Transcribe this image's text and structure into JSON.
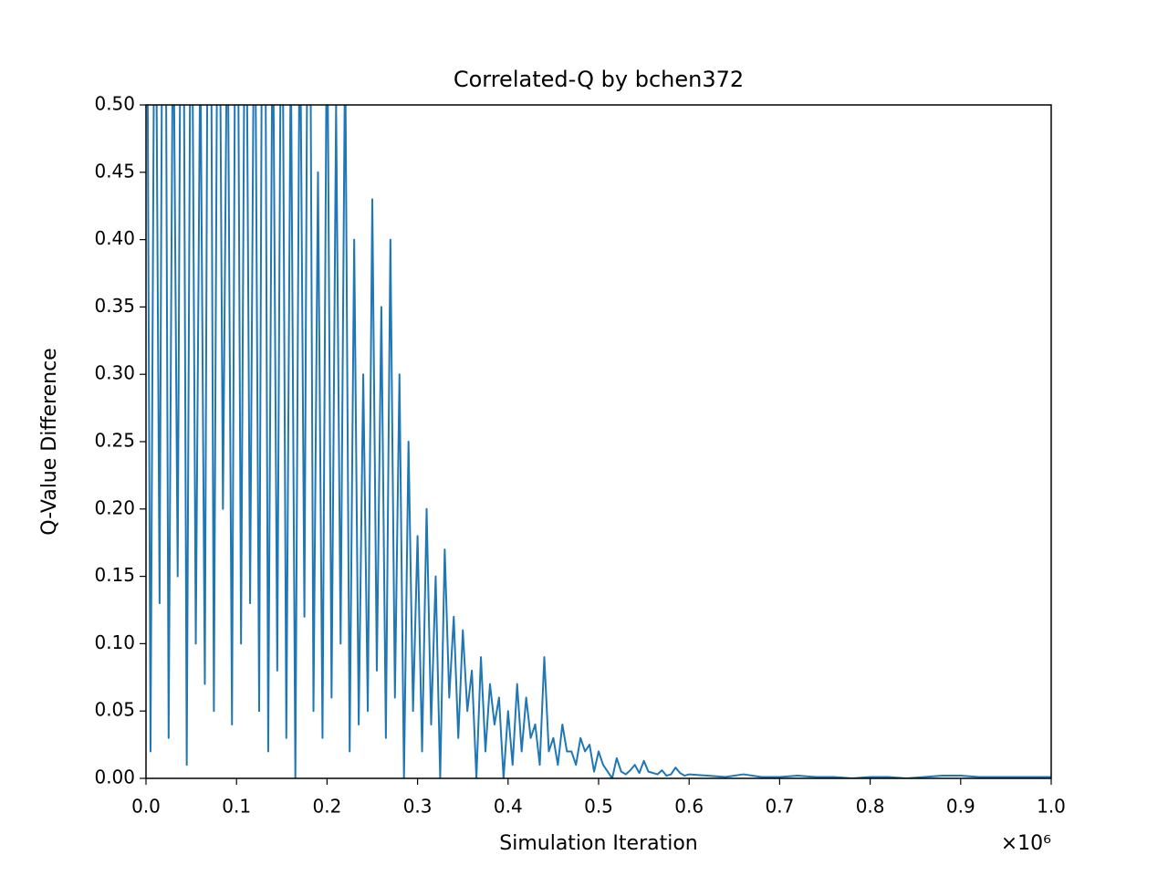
{
  "chart_data": {
    "type": "line",
    "title": "Correlated-Q by bchen372",
    "x_label": "Simulation Iteration",
    "y_label": "Q-Value Difference",
    "x_offset_label": "×10⁶",
    "color": "#1f77b4",
    "xlim": [
      0,
      1
    ],
    "ylim": [
      0,
      0.5
    ],
    "xticks": [
      {
        "value": 0,
        "label": "0.0"
      },
      0.1,
      0.2,
      0.3,
      0.4,
      0.5,
      0.6,
      0.7,
      0.8,
      0.9,
      {
        "value": 1,
        "label": "1.0"
      }
    ],
    "yticks": [
      {
        "value": 0,
        "label": "0.00"
      },
      0.05,
      {
        "value": 0.1,
        "label": "0.10"
      },
      0.15,
      {
        "value": 0.2,
        "label": "0.20"
      },
      0.25,
      {
        "value": 0.3,
        "label": "0.30"
      },
      0.35,
      {
        "value": 0.4,
        "label": "0.40"
      },
      0.45,
      {
        "value": 0.5,
        "label": "0.50"
      }
    ],
    "x": [
      0,
      0.005,
      0.01,
      0.015,
      0.02,
      0.025,
      0.03,
      0.035,
      0.04,
      0.045,
      0.05,
      0.055,
      0.06,
      0.065,
      0.07,
      0.075,
      0.08,
      0.085,
      0.09,
      0.095,
      0.1,
      0.105,
      0.11,
      0.115,
      0.12,
      0.125,
      0.13,
      0.135,
      0.14,
      0.145,
      0.15,
      0.155,
      0.16,
      0.165,
      0.17,
      0.175,
      0.18,
      0.185,
      0.19,
      0.195,
      0.2,
      0.205,
      0.21,
      0.215,
      0.22,
      0.225,
      0.23,
      0.235,
      0.24,
      0.245,
      0.25,
      0.255,
      0.26,
      0.265,
      0.27,
      0.275,
      0.28,
      0.285,
      0.29,
      0.295,
      0.3,
      0.305,
      0.31,
      0.315,
      0.32,
      0.325,
      0.33,
      0.335,
      0.34,
      0.345,
      0.35,
      0.355,
      0.36,
      0.365,
      0.37,
      0.375,
      0.38,
      0.385,
      0.39,
      0.395,
      0.4,
      0.405,
      0.41,
      0.415,
      0.42,
      0.425,
      0.43,
      0.435,
      0.44,
      0.445,
      0.45,
      0.455,
      0.46,
      0.465,
      0.47,
      0.475,
      0.48,
      0.485,
      0.49,
      0.495,
      0.5,
      0.505,
      0.51,
      0.515,
      0.52,
      0.525,
      0.53,
      0.535,
      0.54,
      0.545,
      0.55,
      0.555,
      0.56,
      0.565,
      0.57,
      0.575,
      0.58,
      0.585,
      0.59,
      0.595,
      0.6,
      0.62,
      0.64,
      0.66,
      0.68,
      0.7,
      0.72,
      0.74,
      0.76,
      0.78,
      0.8,
      0.82,
      0.84,
      0.86,
      0.88,
      0.9,
      0.92,
      0.94,
      0.96,
      0.98,
      1
    ],
    "values": [
      0.8,
      0.02,
      0.7,
      0.13,
      0.9,
      0.03,
      0.6,
      0.15,
      0.85,
      0.01,
      0.7,
      0.1,
      0.55,
      0.07,
      0.9,
      0.05,
      0.75,
      0.2,
      0.6,
      0.04,
      0.8,
      0.1,
      0.7,
      0.13,
      0.65,
      0.05,
      0.9,
      0.02,
      0.6,
      0.08,
      0.7,
      0.03,
      0.55,
      0.0,
      0.6,
      0.12,
      0.8,
      0.05,
      0.45,
      0.03,
      0.6,
      0.06,
      0.5,
      0.1,
      0.55,
      0.02,
      0.4,
      0.04,
      0.3,
      0.05,
      0.43,
      0.08,
      0.35,
      0.03,
      0.4,
      0.06,
      0.3,
      0.0,
      0.25,
      0.05,
      0.18,
      0.02,
      0.2,
      0.04,
      0.15,
      0.0,
      0.17,
      0.06,
      0.12,
      0.03,
      0.11,
      0.05,
      0.08,
      0.0,
      0.09,
      0.02,
      0.07,
      0.04,
      0.06,
      0.0,
      0.05,
      0.01,
      0.07,
      0.02,
      0.06,
      0.03,
      0.04,
      0.01,
      0.09,
      0.02,
      0.03,
      0.01,
      0.04,
      0.02,
      0.02,
      0.01,
      0.03,
      0.02,
      0.025,
      0.005,
      0.02,
      0.01,
      0.005,
      0.0,
      0.015,
      0.005,
      0.003,
      0.006,
      0.01,
      0.004,
      0.013,
      0.005,
      0.004,
      0.003,
      0.006,
      0.002,
      0.003,
      0.008,
      0.004,
      0.002,
      0.003,
      0.002,
      0.001,
      0.003,
      0.001,
      0.001,
      0.002,
      0.001,
      0.001,
      0.0,
      0.001,
      0.001,
      0.0,
      0.001,
      0.002,
      0.002,
      0.001,
      0.001,
      0.001,
      0.001,
      0.001
    ]
  }
}
